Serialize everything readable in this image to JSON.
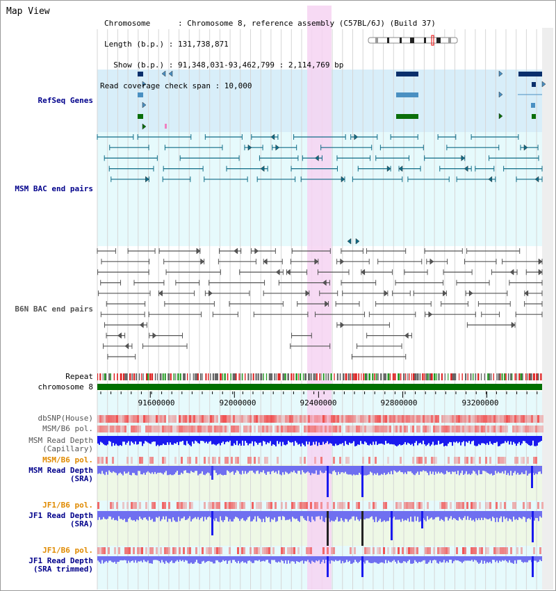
{
  "header": {
    "title": "Map View",
    "info_lines": [
      "Chromosome      : Chromosome 8, reference assembly (C57BL/6J) (Build 37)",
      "Length (b.p.) : 131,738,871",
      "  Show (b.p.) : 91,348,031-93,462,799 : 2,114,769 bp",
      "Read coverage check span : 10,000"
    ]
  },
  "view": {
    "start": 91348031,
    "end": 93462799
  },
  "colors": {
    "refseq_band": "#d8eef9",
    "bac_band": "#e6fafc",
    "highlight": "#f6d3f2",
    "gene_dark": "#0a2f6b",
    "gene_mid": "#4a90c2",
    "gene_green": "#0a6e0a",
    "msm_pair": "#0e6b86",
    "b6n_pair": "#555555",
    "chrom_bar": "#007000",
    "snp": "#f05050",
    "depth_blue": "#1a1aee",
    "sra_blue": "#6f6ff0"
  },
  "tracks": {
    "refseq": "RefSeq Genes",
    "msm_bac": "MSM BAC end pairs",
    "b6n_bac": "B6N BAC end pairs",
    "repeat": "Repeat",
    "chromosome": "chromosome 8",
    "dbsnp": "dbSNP(House)",
    "msm_b6_pol": "MSM/B6 pol.",
    "msm_depth_cap_1": "MSM Read Depth",
    "msm_depth_cap_2": "(Capillary)",
    "msm_b6_pol2": "MSM/B6 pol.",
    "msm_depth_sra_1": "MSM Read Depth",
    "msm_depth_sra_2": "(SRA)",
    "jf1_b6_pol": "JF1/B6 pol.",
    "jf1_depth_sra_1": "JF1 Read Depth",
    "jf1_depth_sra_2": "(SRA)",
    "jf1_b6_pol2": "JF1/B6 pol.",
    "jf1_depth_trim_1": "JF1 Read Depth",
    "jf1_depth_trim_2": "(SRA trimmed)"
  },
  "axis": {
    "ticks": [
      "91600000",
      "92000000",
      "92400000",
      "92800000",
      "93200000"
    ]
  }
}
